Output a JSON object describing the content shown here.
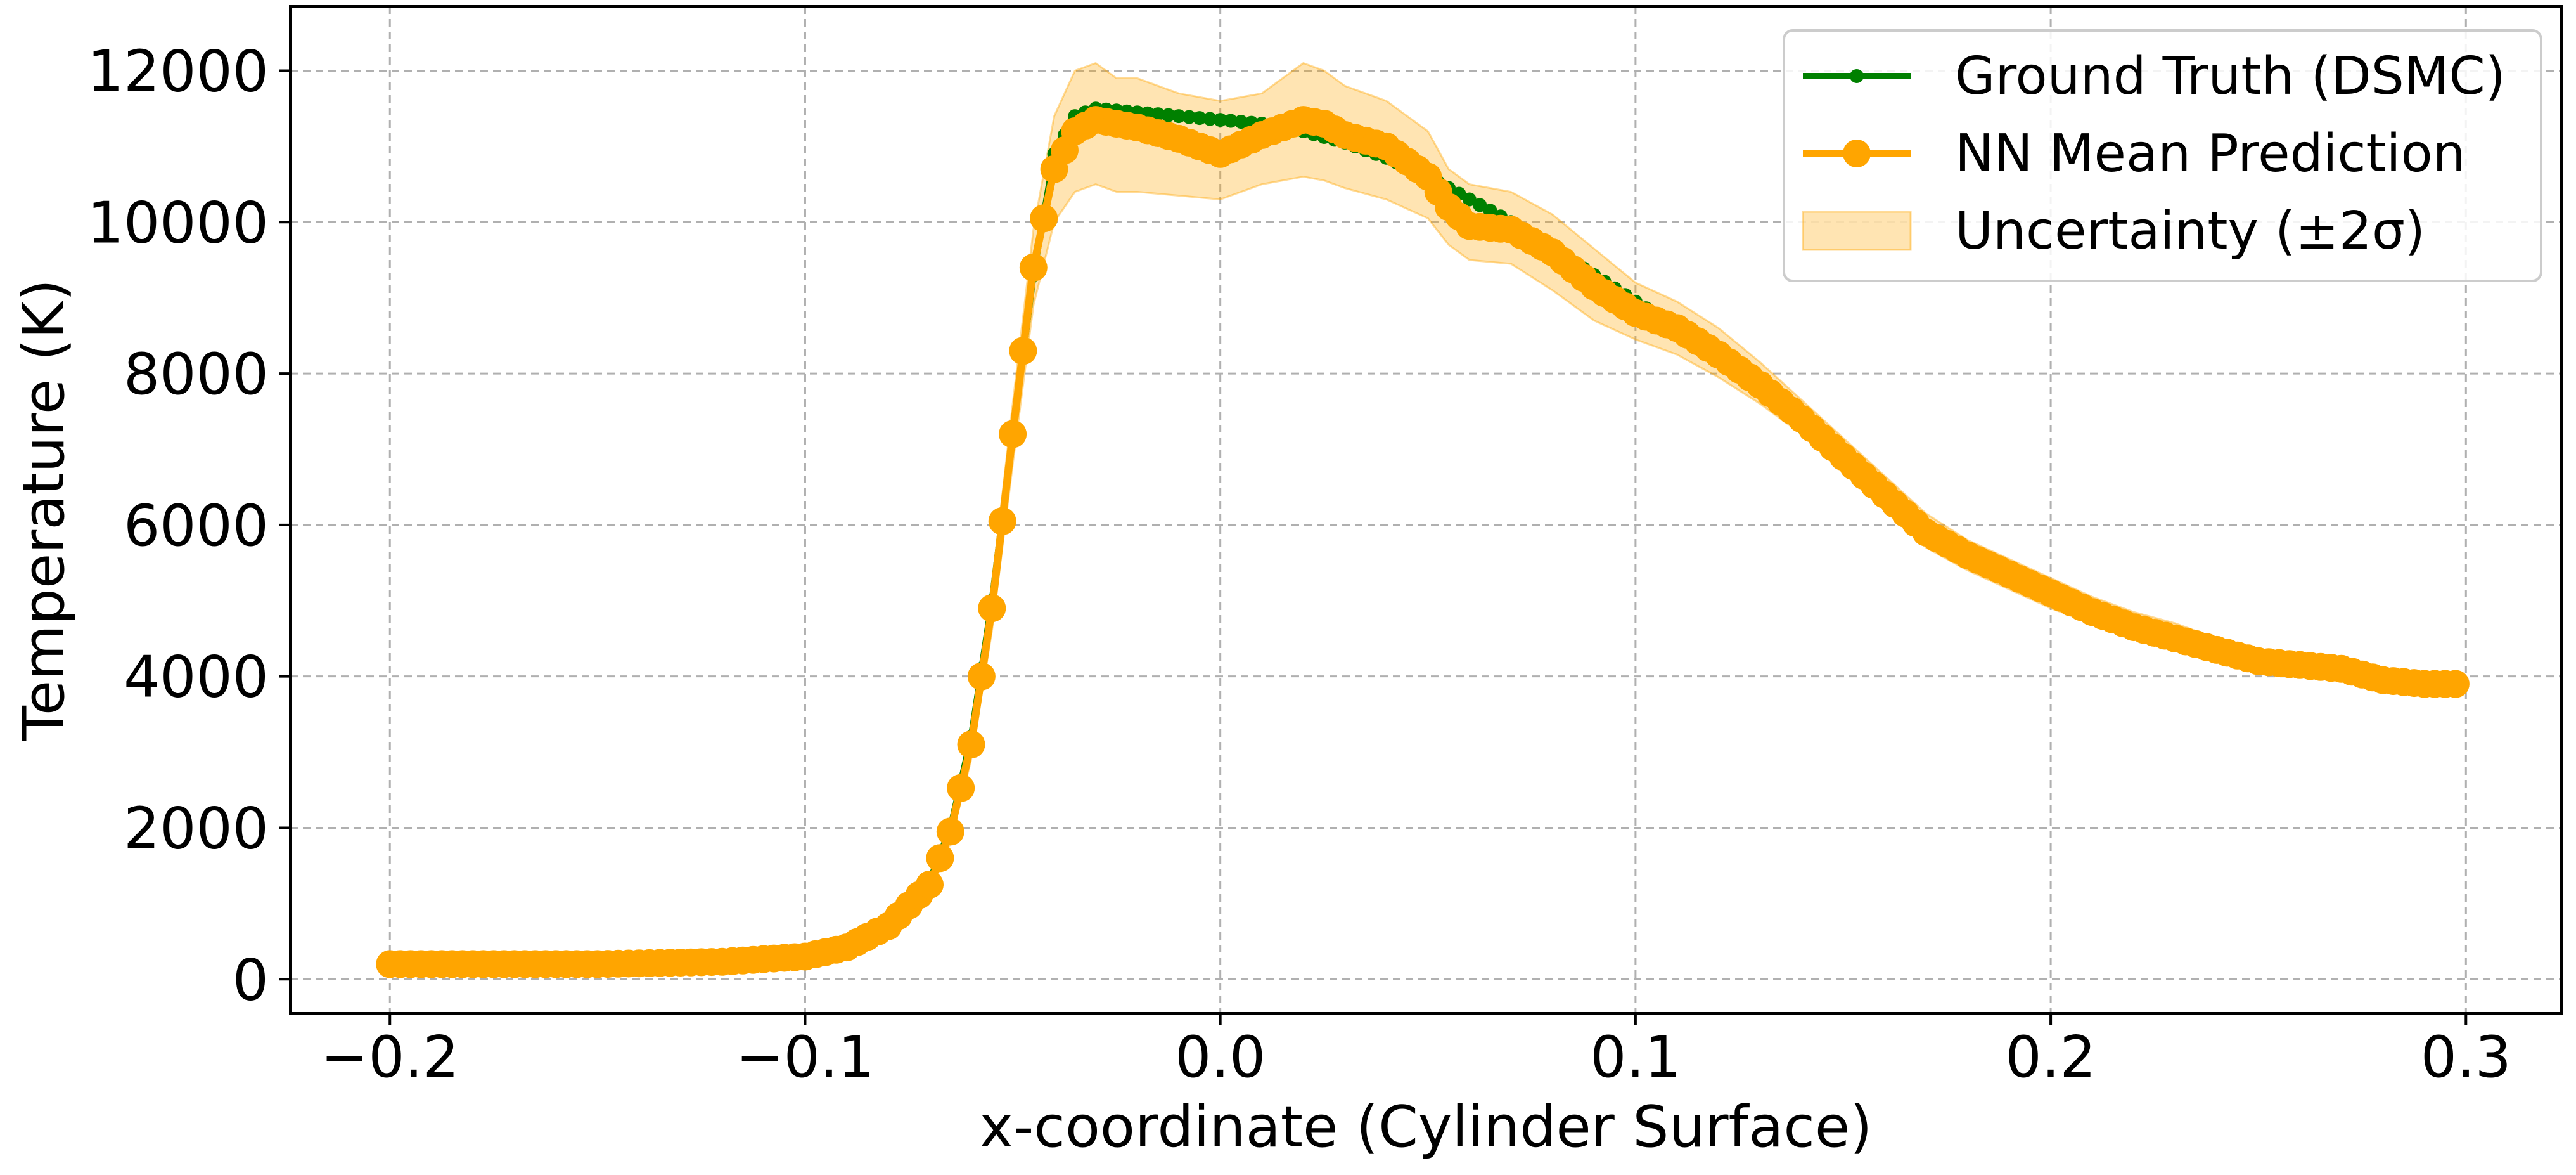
{
  "chart_data": {
    "type": "line",
    "title": "",
    "xlabel": "x-coordinate (Cylinder Surface)",
    "ylabel": "Temperature (K)",
    "xlim": [
      -0.224,
      0.323
    ],
    "ylim": [
      -450,
      12850
    ],
    "x_ticks": [
      -0.2,
      -0.1,
      0.0,
      0.1,
      0.2,
      0.3
    ],
    "x_tick_labels": [
      "−0.2",
      "−0.1",
      "0.0",
      "0.1",
      "0.2",
      "0.3"
    ],
    "y_ticks": [
      0,
      2000,
      4000,
      6000,
      8000,
      10000,
      12000
    ],
    "y_tick_labels": [
      "0",
      "2000",
      "4000",
      "6000",
      "8000",
      "10000",
      "12000"
    ],
    "grid": true,
    "legend_position": "top-right",
    "x_range": [
      -0.2,
      0.2975
    ],
    "series": [
      {
        "name": "Ground Truth (DSMC)",
        "kind": "line-small-markers",
        "color": "#008000",
        "x": [
          -0.2,
          -0.15,
          -0.12,
          -0.1,
          -0.09,
          -0.08,
          -0.07,
          -0.065,
          -0.06,
          -0.055,
          -0.05,
          -0.045,
          -0.04,
          -0.035,
          -0.03,
          -0.02,
          -0.01,
          0.0,
          0.01,
          0.02,
          0.03,
          0.04,
          0.05,
          0.06,
          0.07,
          0.08,
          0.09,
          0.1,
          0.11,
          0.12,
          0.13,
          0.14,
          0.15,
          0.16,
          0.17,
          0.18,
          0.19,
          0.2,
          0.21,
          0.22,
          0.23,
          0.24,
          0.25,
          0.26,
          0.27,
          0.28,
          0.29,
          0.2975
        ],
        "y": [
          200,
          200,
          230,
          300,
          420,
          700,
          1300,
          2000,
          3200,
          5000,
          7200,
          9300,
          10900,
          11400,
          11500,
          11450,
          11400,
          11350,
          11300,
          11200,
          11050,
          10850,
          10600,
          10300,
          10000,
          9650,
          9300,
          8950,
          8600,
          8200,
          7800,
          7300,
          6850,
          6400,
          6000,
          5650,
          5350,
          5100,
          4900,
          4700,
          4550,
          4400,
          4250,
          4150,
          4050,
          3950,
          3900,
          3900
        ]
      },
      {
        "name": "NN Mean Prediction",
        "kind": "line-large-markers",
        "color": "#FFA500",
        "x": [
          -0.2,
          -0.15,
          -0.12,
          -0.1,
          -0.09,
          -0.08,
          -0.07,
          -0.065,
          -0.06,
          -0.055,
          -0.05,
          -0.045,
          -0.04,
          -0.035,
          -0.03,
          -0.025,
          -0.02,
          -0.01,
          0.0,
          0.01,
          0.02,
          0.025,
          0.03,
          0.04,
          0.05,
          0.055,
          0.06,
          0.07,
          0.08,
          0.09,
          0.1,
          0.11,
          0.12,
          0.13,
          0.14,
          0.15,
          0.16,
          0.17,
          0.18,
          0.19,
          0.2,
          0.21,
          0.22,
          0.23,
          0.24,
          0.25,
          0.26,
          0.27,
          0.28,
          0.29,
          0.2975
        ],
        "y": [
          200,
          200,
          230,
          300,
          420,
          700,
          1250,
          1950,
          3100,
          4900,
          7200,
          9400,
          10700,
          11200,
          11350,
          11300,
          11250,
          11100,
          10900,
          11150,
          11350,
          11300,
          11150,
          11000,
          10600,
          10200,
          9950,
          9900,
          9600,
          9150,
          8800,
          8600,
          8250,
          7850,
          7400,
          6900,
          6400,
          5900,
          5600,
          5350,
          5100,
          4850,
          4650,
          4500,
          4350,
          4200,
          4150,
          4100,
          3950,
          3900,
          3900
        ]
      },
      {
        "name": "Uncertainty (±2σ)",
        "kind": "band",
        "color": "#FFA500",
        "opacity": 0.3,
        "x": [
          -0.2,
          -0.15,
          -0.12,
          -0.1,
          -0.09,
          -0.08,
          -0.07,
          -0.065,
          -0.06,
          -0.055,
          -0.05,
          -0.045,
          -0.04,
          -0.035,
          -0.03,
          -0.025,
          -0.02,
          -0.01,
          0.0,
          0.01,
          0.02,
          0.025,
          0.03,
          0.04,
          0.05,
          0.055,
          0.06,
          0.07,
          0.08,
          0.09,
          0.1,
          0.11,
          0.12,
          0.13,
          0.14,
          0.15,
          0.16,
          0.17,
          0.18,
          0.19,
          0.2,
          0.21,
          0.22,
          0.23,
          0.24,
          0.25,
          0.26,
          0.27,
          0.28,
          0.29,
          0.2975
        ],
        "lower": [
          170,
          170,
          200,
          260,
          380,
          630,
          1130,
          1800,
          2900,
          4600,
          6800,
          8900,
          10000,
          10400,
          10500,
          10400,
          10400,
          10350,
          10300,
          10500,
          10600,
          10550,
          10450,
          10300,
          10050,
          9700,
          9500,
          9450,
          9100,
          8700,
          8450,
          8250,
          7950,
          7600,
          7200,
          6700,
          6200,
          5700,
          5400,
          5150,
          4900,
          4700,
          4500,
          4350,
          4200,
          4050,
          4000,
          3950,
          3820,
          3780,
          3780
        ],
        "upper": [
          230,
          230,
          260,
          340,
          460,
          770,
          1370,
          2100,
          3300,
          5200,
          7600,
          9900,
          11400,
          12000,
          12100,
          11900,
          11900,
          11700,
          11600,
          11700,
          12100,
          12000,
          11800,
          11600,
          11200,
          10700,
          10500,
          10400,
          10100,
          9650,
          9200,
          8950,
          8600,
          8150,
          7650,
          7150,
          6650,
          6150,
          5800,
          5550,
          5300,
          5050,
          4850,
          4700,
          4500,
          4350,
          4300,
          4250,
          4080,
          4020,
          4020
        ]
      }
    ]
  }
}
